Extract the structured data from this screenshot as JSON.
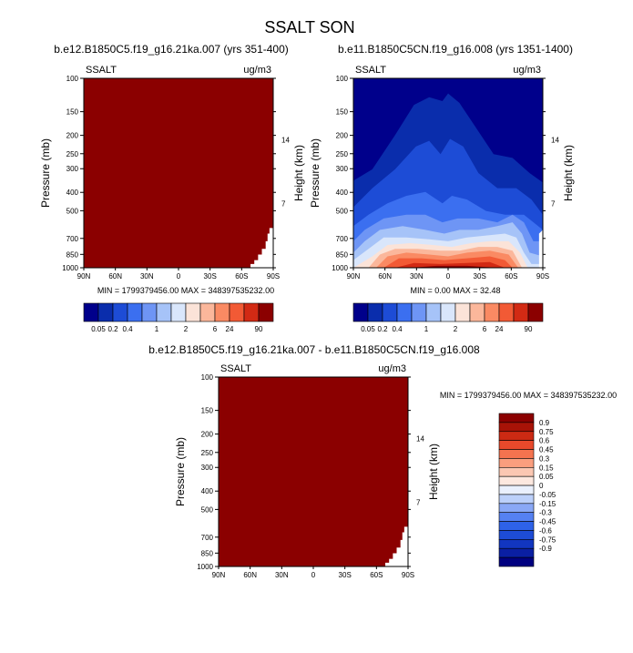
{
  "title": "SSALT SON",
  "colors": {
    "dark_red": "#8b0000",
    "level_colors": [
      "#00008b",
      "#0a2dac",
      "#1d4cd6",
      "#3b6ff0",
      "#6e95f5",
      "#a6c3f8",
      "#d9e6fb",
      "#fbe3d8",
      "#fbb79b",
      "#fa8a63",
      "#f25a35",
      "#d22a14",
      "#8b0000"
    ],
    "diff_colors": [
      "#000080",
      "#0a1fa3",
      "#1236c0",
      "#1d4cd6",
      "#2e62e8",
      "#5581f2",
      "#8aa8f6",
      "#bcd0fa",
      "#eaf0fd",
      "#fde8df",
      "#fbc7b2",
      "#fa9e7e",
      "#f4734f",
      "#e8492b",
      "#cc2a13",
      "#a81307",
      "#8b0000"
    ]
  },
  "chart_data": [
    {
      "type": "heatmap",
      "title": "b.e12.B1850C5.f19_g16.21ka.007 (yrs 351-400)",
      "variable": "SSALT",
      "units": "ug/m3",
      "xlabel": "",
      "ylabel": "Pressure (mb)",
      "y2label": "Height (km)",
      "x_ticks": [
        "90N",
        "60N",
        "30N",
        "0",
        "30S",
        "60S",
        "90S"
      ],
      "y_ticks": [
        100,
        150,
        200,
        250,
        300,
        400,
        500,
        700,
        850,
        1000
      ],
      "y2_ticks": [
        14,
        7
      ],
      "x_range": [
        90,
        -90
      ],
      "y_range": [
        100,
        1000
      ],
      "field": "uniform maximum level over the whole domain except the lowest levels near 90S",
      "min_label": "MIN = 1799379456.00",
      "max_label": "MAX = 348397535232.00"
    },
    {
      "type": "heatmap",
      "title": "b.e11.B1850C5CN.f19_g16.008 (yrs 1351-1400)",
      "variable": "SSALT",
      "units": "ug/m3",
      "xlabel": "",
      "ylabel": "Pressure (mb)",
      "y2label": "Height (km)",
      "x_ticks": [
        "90N",
        "60N",
        "30N",
        "0",
        "30S",
        "60S",
        "90S"
      ],
      "y_ticks": [
        100,
        150,
        200,
        250,
        300,
        400,
        500,
        700,
        850,
        1000
      ],
      "y2_ticks": [
        14,
        7
      ],
      "x_range": [
        90,
        -90
      ],
      "y_range": [
        100,
        1000
      ],
      "field": "filled contours, maximum near surface at 30-60 latitude, decreasing upward",
      "min_label": "MIN =   0.00",
      "max_label": "MAX =  32.48"
    },
    {
      "type": "heatmap",
      "title": "b.e12.B1850C5.f19_g16.21ka.007 - b.e11.B1850C5CN.f19_g16.008",
      "variable": "SSALT",
      "units": "ug/m3",
      "xlabel": "",
      "ylabel": "Pressure (mb)",
      "y2label": "Height (km)",
      "x_ticks": [
        "90N",
        "60N",
        "30N",
        "0",
        "30S",
        "60S",
        "90S"
      ],
      "y_ticks": [
        100,
        150,
        200,
        250,
        300,
        400,
        500,
        700,
        850,
        1000
      ],
      "y2_ticks": [
        14,
        7
      ],
      "x_range": [
        90,
        -90
      ],
      "y_range": [
        100,
        1000
      ],
      "field": "difference, uniform maximum level except the lowest levels near 90S",
      "min_label": "MIN = 1799379456.00",
      "max_label": "MAX = 348397535232.00"
    }
  ],
  "colorbar_top": {
    "labels": [
      "0.05",
      "0.2",
      "0.4",
      "1",
      "2",
      "6",
      "24",
      "90"
    ],
    "label_positions": [
      1,
      2,
      3,
      4,
      5,
      6,
      7,
      8,
      9,
      10,
      11,
      12
    ],
    "label_map": [
      {
        "boundary": 1,
        "text": "0.05"
      },
      {
        "boundary": 2,
        "text": "0.2"
      },
      {
        "boundary": 3,
        "text": "0.4"
      },
      {
        "boundary": 5,
        "text": "1"
      },
      {
        "boundary": 7,
        "text": "2"
      },
      {
        "boundary": 9,
        "text": "6"
      },
      {
        "boundary": 10,
        "text": "24"
      },
      {
        "boundary": 12,
        "text": "90"
      }
    ]
  },
  "colorbar_diff": {
    "labels": [
      "0.9",
      "0.75",
      "0.6",
      "0.45",
      "0.3",
      "0.15",
      "0.05",
      "0",
      "-0.05",
      "-0.15",
      "-0.3",
      "-0.45",
      "-0.6",
      "-0.75",
      "-0.9"
    ]
  }
}
